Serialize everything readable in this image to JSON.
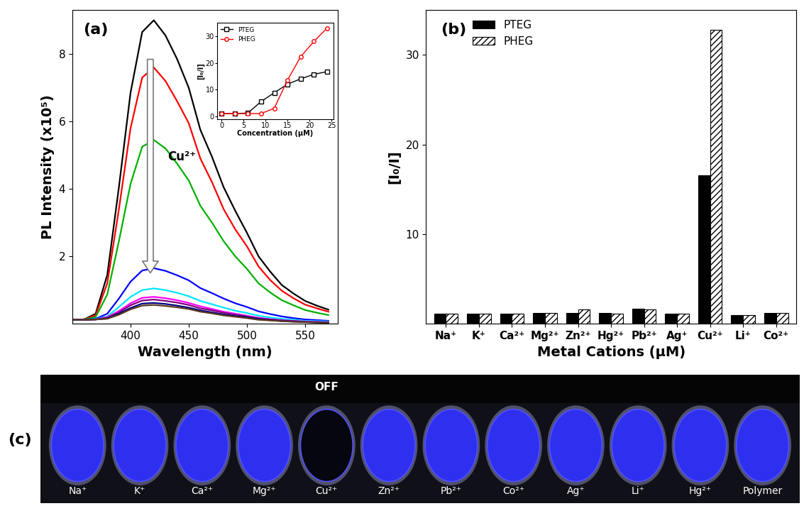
{
  "chart_data": [
    {
      "type": "line",
      "title": "(a)",
      "x_label": "Wavelength (nm)",
      "y_label": "PL Intensity (x10⁵)",
      "x": [
        350,
        360,
        370,
        380,
        390,
        400,
        410,
        420,
        430,
        440,
        450,
        460,
        470,
        480,
        490,
        500,
        510,
        520,
        530,
        540,
        550,
        560,
        570
      ],
      "series": [
        {
          "color": "#000000",
          "values": [
            0.13,
            0.13,
            0.3,
            1.45,
            4.05,
            6.85,
            8.65,
            9.0,
            8.55,
            7.85,
            7.0,
            5.75,
            4.95,
            4.05,
            3.35,
            2.7,
            2.0,
            1.55,
            1.15,
            0.9,
            0.68,
            0.54,
            0.42
          ]
        },
        {
          "color": "#ff0000",
          "values": [
            0.13,
            0.13,
            0.25,
            1.2,
            3.4,
            5.8,
            7.3,
            7.6,
            7.2,
            6.6,
            5.95,
            4.9,
            4.2,
            3.4,
            2.8,
            2.3,
            1.7,
            1.3,
            0.98,
            0.76,
            0.57,
            0.46,
            0.36
          ]
        },
        {
          "color": "#00b000",
          "values": [
            0.13,
            0.13,
            0.2,
            0.87,
            2.45,
            4.15,
            5.25,
            5.45,
            5.2,
            4.75,
            4.25,
            3.5,
            3.0,
            2.45,
            2.0,
            1.63,
            1.2,
            0.93,
            0.7,
            0.55,
            0.41,
            0.33,
            0.26
          ]
        },
        {
          "color": "#0000ff",
          "values": [
            0.12,
            0.12,
            0.15,
            0.3,
            0.75,
            1.25,
            1.58,
            1.65,
            1.57,
            1.44,
            1.29,
            1.06,
            0.91,
            0.75,
            0.61,
            0.5,
            0.37,
            0.29,
            0.22,
            0.17,
            0.13,
            0.11,
            0.09
          ]
        },
        {
          "color": "#00e5ff",
          "values": [
            0.12,
            0.12,
            0.14,
            0.22,
            0.5,
            0.8,
            1.0,
            1.05,
            1.0,
            0.92,
            0.82,
            0.68,
            0.58,
            0.48,
            0.39,
            0.32,
            0.24,
            0.19,
            0.15,
            0.12,
            0.09,
            0.08,
            0.07
          ]
        },
        {
          "color": "#ff00ff",
          "values": [
            0.12,
            0.12,
            0.13,
            0.2,
            0.38,
            0.61,
            0.77,
            0.8,
            0.76,
            0.7,
            0.62,
            0.52,
            0.44,
            0.36,
            0.3,
            0.24,
            0.18,
            0.14,
            0.11,
            0.09,
            0.07,
            0.06,
            0.05
          ]
        },
        {
          "color": "#800080",
          "values": [
            0.12,
            0.12,
            0.13,
            0.18,
            0.34,
            0.55,
            0.69,
            0.72,
            0.68,
            0.63,
            0.56,
            0.46,
            0.4,
            0.33,
            0.27,
            0.22,
            0.16,
            0.13,
            0.1,
            0.08,
            0.06,
            0.05,
            0.04
          ]
        },
        {
          "color": "#000080",
          "values": [
            0.12,
            0.12,
            0.13,
            0.16,
            0.3,
            0.47,
            0.6,
            0.62,
            0.59,
            0.54,
            0.48,
            0.4,
            0.34,
            0.28,
            0.23,
            0.19,
            0.14,
            0.11,
            0.08,
            0.07,
            0.05,
            0.04,
            0.03
          ]
        },
        {
          "color": "#5a3a20",
          "values": [
            0.12,
            0.12,
            0.13,
            0.15,
            0.27,
            0.43,
            0.54,
            0.56,
            0.53,
            0.49,
            0.44,
            0.36,
            0.31,
            0.25,
            0.21,
            0.17,
            0.12,
            0.1,
            0.08,
            0.06,
            0.05,
            0.04,
            0.03
          ]
        }
      ],
      "xlim": [
        350,
        578
      ],
      "xticks": [
        400,
        450,
        500,
        550
      ],
      "ylim": [
        0,
        9.3
      ],
      "yticks": [
        2,
        4,
        6,
        8
      ],
      "annotations": [
        {
          "text": "Cu²⁺"
        }
      ]
    },
    {
      "type": "line",
      "x_label": "Concentration (µM)",
      "y_label": "[I₀/I]",
      "x": [
        0,
        3,
        6,
        9,
        12,
        15,
        18,
        21,
        24
      ],
      "series": [
        {
          "name": "PTEG",
          "color": "#000000",
          "marker": "square",
          "values": [
            1,
            1,
            1.2,
            5.5,
            8.8,
            12,
            14,
            15.7,
            16.7
          ]
        },
        {
          "name": "PHEG",
          "color": "#ff0000",
          "marker": "circle",
          "values": [
            1,
            1,
            1,
            1,
            3,
            13.5,
            22.3,
            28,
            33
          ]
        }
      ],
      "xlim": [
        -1,
        25.5
      ],
      "xticks": [
        0,
        5,
        10,
        15,
        20,
        25
      ],
      "ylim": [
        -1,
        35
      ],
      "yticks": [
        0,
        10,
        20,
        30
      ],
      "legend": "upper left"
    },
    {
      "type": "bar",
      "title": "(b)",
      "x_label": "Metal Cations (µM)",
      "y_label": "[I₀/I]",
      "categories": [
        "Na⁺",
        "K⁺",
        "Ca²⁺",
        "Mg²⁺",
        "Zn²⁺",
        "Hg²⁺",
        "Pb²⁺",
        "Ag⁺",
        "Cu²⁺",
        "Li⁺",
        "Co²⁺"
      ],
      "series": [
        {
          "name": "PTEG",
          "color": "#000000",
          "values": [
            1.1,
            1.1,
            1.1,
            1.2,
            1.2,
            1.2,
            1.7,
            1.1,
            16.6,
            1.0,
            1.2
          ]
        },
        {
          "name": "PHEG",
          "color": "#ffffff",
          "values": [
            1.1,
            1.1,
            1.1,
            1.2,
            1.6,
            1.1,
            1.6,
            1.1,
            32.8,
            1.0,
            1.2
          ]
        }
      ],
      "ylim": [
        0,
        35
      ],
      "yticks": [
        10,
        20,
        30
      ],
      "legend": "upper left"
    },
    {
      "type": "image",
      "title": "(c)",
      "categories": [
        "Na⁺",
        "K⁺",
        "Ca²⁺",
        "Mg²⁺",
        "Cu²⁺",
        "Zn²⁺",
        "Pb²⁺",
        "Co²⁺",
        "Ag⁺",
        "Li⁺",
        "Hg²⁺",
        "Polymer"
      ],
      "colors": [
        "#2f2ff0",
        "#2f2ff0",
        "#2f2ff0",
        "#2f2ff0",
        "#06060f",
        "#2f2ff0",
        "#2f2ff0",
        "#2f2ff0",
        "#2f2ff0",
        "#2f2ff0",
        "#2f2ff0",
        "#2f2ff0"
      ],
      "annotations": [
        {
          "text": "OFF",
          "category": "Cu²⁺"
        }
      ]
    }
  ]
}
